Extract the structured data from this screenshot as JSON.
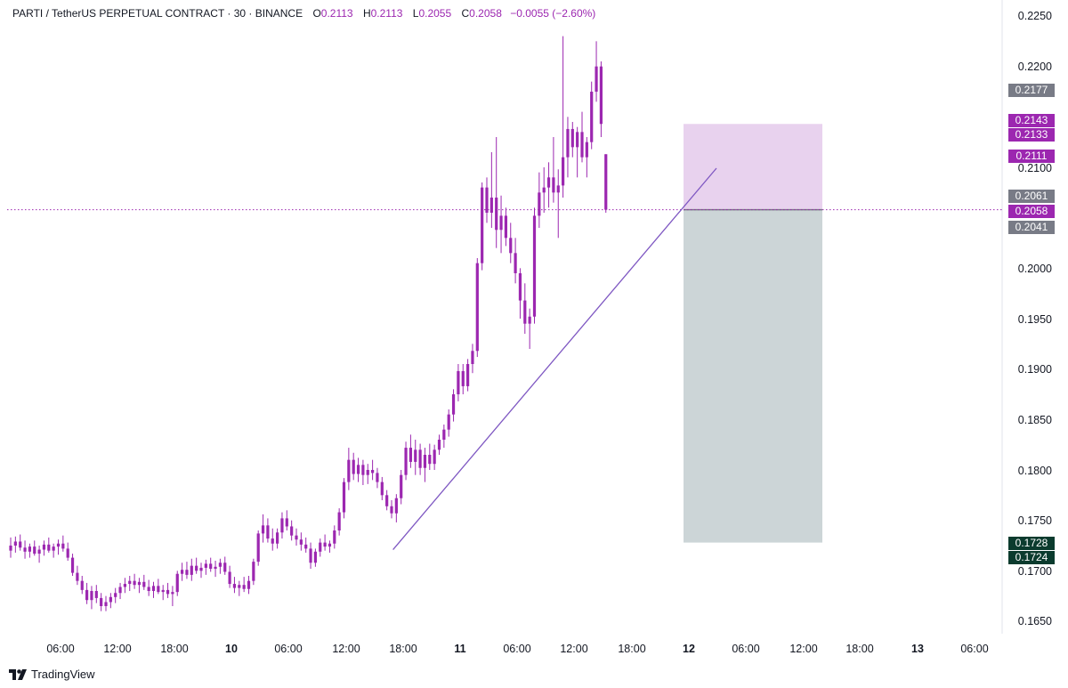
{
  "header": {
    "symbol": "PARTI / TetherUS PERPETUAL CONTRACT · 30 · BINANCE",
    "open_label": "O",
    "open": "0.2113",
    "high_label": "H",
    "high": "0.2113",
    "low_label": "L",
    "low": "0.2055",
    "close_label": "C",
    "close": "0.2058",
    "change": "−0.0055 (−2.60%)"
  },
  "brand": {
    "name": "TradingView",
    "icon": "tradingview-logo-icon"
  },
  "y_axis": {
    "ticks": [
      "0.2250",
      "0.2200",
      "0.2100",
      "0.2000",
      "0.1950",
      "0.1900",
      "0.1850",
      "0.1800",
      "0.1750",
      "0.1700",
      "0.1650"
    ]
  },
  "x_axis": {
    "ticks": [
      {
        "label": "06:00",
        "bold": false
      },
      {
        "label": "12:00",
        "bold": false
      },
      {
        "label": "18:00",
        "bold": false
      },
      {
        "label": "10",
        "bold": true
      },
      {
        "label": "06:00",
        "bold": false
      },
      {
        "label": "12:00",
        "bold": false
      },
      {
        "label": "18:00",
        "bold": false
      },
      {
        "label": "11",
        "bold": true
      },
      {
        "label": "06:00",
        "bold": false
      },
      {
        "label": "12:00",
        "bold": false
      },
      {
        "label": "18:00",
        "bold": false
      },
      {
        "label": "12",
        "bold": true
      },
      {
        "label": "06:00",
        "bold": false
      },
      {
        "label": "12:00",
        "bold": false
      },
      {
        "label": "18:00",
        "bold": false
      },
      {
        "label": "13",
        "bold": true
      },
      {
        "label": "06:00",
        "bold": false
      }
    ]
  },
  "price_labels": [
    {
      "value": "0.2177",
      "color": "#787b86"
    },
    {
      "value": "0.2143",
      "color": "#9c27b0"
    },
    {
      "value": "0.2133",
      "color": "#9c27b0"
    },
    {
      "value": "0.2111",
      "color": "#9c27b0"
    },
    {
      "value": "0.2061",
      "color": "#787b86"
    },
    {
      "value": "0.2058",
      "color": "#9c27b0"
    },
    {
      "value": "0.2041",
      "color": "#787b86"
    },
    {
      "value": "0.1728",
      "color": "#0b3b2e"
    },
    {
      "value": "0.1724",
      "color": "#0b3b2e"
    }
  ],
  "colors": {
    "candle": "#9c27b0",
    "trendline": "#7e57c2",
    "stop_zone": "#e8d2ee",
    "target_zone": "#ccd5d7",
    "current_price_line": "#9c27b0"
  },
  "position_tool": {
    "type": "short position",
    "entry": 0.2058,
    "stop": 0.2143,
    "target": 0.1728
  },
  "chart_data": {
    "type": "candlestick",
    "symbol": "PARTI / TetherUS PERPETUAL CONTRACT",
    "interval": "30",
    "exchange": "BINANCE",
    "ylim": [
      0.1625,
      0.2265
    ],
    "last_close": 0.2058,
    "ohlc": [
      [
        0.172,
        0.1733,
        0.1713,
        0.1725
      ],
      [
        0.1725,
        0.1734,
        0.1718,
        0.1729
      ],
      [
        0.1729,
        0.1736,
        0.172,
        0.1723
      ],
      [
        0.1723,
        0.173,
        0.1712,
        0.1719
      ],
      [
        0.1719,
        0.1727,
        0.1713,
        0.1724
      ],
      [
        0.1724,
        0.173,
        0.1715,
        0.1717
      ],
      [
        0.1717,
        0.1725,
        0.1708,
        0.1721
      ],
      [
        0.1721,
        0.173,
        0.1715,
        0.1726
      ],
      [
        0.1726,
        0.1733,
        0.1718,
        0.172
      ],
      [
        0.172,
        0.1727,
        0.1713,
        0.1724
      ],
      [
        0.1724,
        0.1731,
        0.1716,
        0.1727
      ],
      [
        0.1727,
        0.1735,
        0.1719,
        0.1722
      ],
      [
        0.1722,
        0.1728,
        0.171,
        0.1713
      ],
      [
        0.1713,
        0.1717,
        0.1695,
        0.1698
      ],
      [
        0.1698,
        0.1705,
        0.1686,
        0.169
      ],
      [
        0.169,
        0.1695,
        0.1677,
        0.1681
      ],
      [
        0.1681,
        0.1688,
        0.1667,
        0.1671
      ],
      [
        0.1671,
        0.1685,
        0.1662,
        0.168
      ],
      [
        0.168,
        0.1686,
        0.1668,
        0.1673
      ],
      [
        0.1673,
        0.1678,
        0.166,
        0.1665
      ],
      [
        0.1665,
        0.1675,
        0.166,
        0.1669
      ],
      [
        0.1669,
        0.1678,
        0.1663,
        0.1674
      ],
      [
        0.1674,
        0.1683,
        0.1668,
        0.1678
      ],
      [
        0.1678,
        0.1688,
        0.1672,
        0.1684
      ],
      [
        0.1684,
        0.1693,
        0.1678,
        0.1687
      ],
      [
        0.1687,
        0.1695,
        0.168,
        0.169
      ],
      [
        0.169,
        0.1697,
        0.1682,
        0.1686
      ],
      [
        0.1686,
        0.1693,
        0.1678,
        0.1689
      ],
      [
        0.1689,
        0.1696,
        0.1681,
        0.1684
      ],
      [
        0.1684,
        0.1691,
        0.1675,
        0.168
      ],
      [
        0.168,
        0.1689,
        0.1673,
        0.1685
      ],
      [
        0.1685,
        0.1692,
        0.1677,
        0.1679
      ],
      [
        0.1679,
        0.1686,
        0.1671,
        0.1681
      ],
      [
        0.1681,
        0.1688,
        0.1673,
        0.1677
      ],
      [
        0.1677,
        0.1685,
        0.1665,
        0.1679
      ],
      [
        0.1679,
        0.17,
        0.1675,
        0.1697
      ],
      [
        0.1697,
        0.1708,
        0.169,
        0.1701
      ],
      [
        0.1701,
        0.1709,
        0.1692,
        0.1696
      ],
      [
        0.1696,
        0.1712,
        0.169,
        0.1705
      ],
      [
        0.1705,
        0.1713,
        0.1697,
        0.17
      ],
      [
        0.17,
        0.1708,
        0.1693,
        0.1703
      ],
      [
        0.1703,
        0.1711,
        0.1696,
        0.1707
      ],
      [
        0.1707,
        0.1713,
        0.1699,
        0.1702
      ],
      [
        0.1702,
        0.171,
        0.1694,
        0.1704
      ],
      [
        0.1704,
        0.1712,
        0.1697,
        0.1708
      ],
      [
        0.1708,
        0.1714,
        0.1696,
        0.1699
      ],
      [
        0.1699,
        0.1705,
        0.1683,
        0.1687
      ],
      [
        0.1687,
        0.1694,
        0.1678,
        0.1683
      ],
      [
        0.1683,
        0.169,
        0.1675,
        0.1686
      ],
      [
        0.1686,
        0.1694,
        0.1679,
        0.1682
      ],
      [
        0.1682,
        0.1695,
        0.1677,
        0.169
      ],
      [
        0.169,
        0.1712,
        0.1686,
        0.1709
      ],
      [
        0.1709,
        0.174,
        0.1705,
        0.1737
      ],
      [
        0.1737,
        0.1756,
        0.1728,
        0.1745
      ],
      [
        0.1745,
        0.1752,
        0.1728,
        0.1732
      ],
      [
        0.1732,
        0.1742,
        0.172,
        0.1727
      ],
      [
        0.1727,
        0.1742,
        0.1722,
        0.1738
      ],
      [
        0.1738,
        0.1758,
        0.1732,
        0.1752
      ],
      [
        0.1752,
        0.176,
        0.174,
        0.1744
      ],
      [
        0.1744,
        0.175,
        0.173,
        0.1735
      ],
      [
        0.1735,
        0.1742,
        0.1725,
        0.1731
      ],
      [
        0.1731,
        0.1738,
        0.172,
        0.1726
      ],
      [
        0.1726,
        0.1733,
        0.1718,
        0.1722
      ],
      [
        0.1722,
        0.1728,
        0.1702,
        0.1708
      ],
      [
        0.1708,
        0.1722,
        0.1704,
        0.1719
      ],
      [
        0.1719,
        0.1732,
        0.1714,
        0.1728
      ],
      [
        0.1728,
        0.1736,
        0.172,
        0.1724
      ],
      [
        0.1724,
        0.173,
        0.1718,
        0.1727
      ],
      [
        0.1727,
        0.1745,
        0.1722,
        0.174
      ],
      [
        0.174,
        0.1762,
        0.1735,
        0.1758
      ],
      [
        0.1758,
        0.1792,
        0.1752,
        0.1788
      ],
      [
        0.1788,
        0.1822,
        0.178,
        0.181
      ],
      [
        0.181,
        0.1817,
        0.179,
        0.1796
      ],
      [
        0.1796,
        0.1812,
        0.1788,
        0.1805
      ],
      [
        0.1805,
        0.181,
        0.1785,
        0.1795
      ],
      [
        0.1795,
        0.1806,
        0.1786,
        0.18
      ],
      [
        0.18,
        0.181,
        0.179,
        0.1797
      ],
      [
        0.1797,
        0.1802,
        0.1782,
        0.1788
      ],
      [
        0.1788,
        0.1793,
        0.177,
        0.1775
      ],
      [
        0.1775,
        0.178,
        0.176,
        0.1764
      ],
      [
        0.1764,
        0.177,
        0.1752,
        0.1757
      ],
      [
        0.1757,
        0.1776,
        0.1748,
        0.1772
      ],
      [
        0.1772,
        0.18,
        0.1766,
        0.1795
      ],
      [
        0.1795,
        0.1828,
        0.179,
        0.1822
      ],
      [
        0.1822,
        0.1835,
        0.1802,
        0.1808
      ],
      [
        0.1808,
        0.183,
        0.1795,
        0.182
      ],
      [
        0.182,
        0.1826,
        0.1795,
        0.1802
      ],
      [
        0.1802,
        0.1822,
        0.1788,
        0.1815
      ],
      [
        0.1815,
        0.1826,
        0.18,
        0.1806
      ],
      [
        0.1806,
        0.1825,
        0.18,
        0.182
      ],
      [
        0.182,
        0.1835,
        0.1815,
        0.183
      ],
      [
        0.183,
        0.1845,
        0.1822,
        0.184
      ],
      [
        0.184,
        0.186,
        0.1833,
        0.1855
      ],
      [
        0.1855,
        0.188,
        0.1848,
        0.1875
      ],
      [
        0.1875,
        0.1905,
        0.1868,
        0.1898
      ],
      [
        0.1898,
        0.1905,
        0.1875,
        0.1883
      ],
      [
        0.1883,
        0.191,
        0.1878,
        0.1905
      ],
      [
        0.1905,
        0.1925,
        0.1896,
        0.1918
      ],
      [
        0.1918,
        0.201,
        0.1912,
        0.2005
      ],
      [
        0.2005,
        0.2085,
        0.1998,
        0.208
      ],
      [
        0.208,
        0.209,
        0.2045,
        0.2055
      ],
      [
        0.2055,
        0.2115,
        0.204,
        0.207
      ],
      [
        0.207,
        0.213,
        0.202,
        0.2038
      ],
      [
        0.2038,
        0.2072,
        0.2015,
        0.2052
      ],
      [
        0.2052,
        0.206,
        0.2022,
        0.203
      ],
      [
        0.203,
        0.2045,
        0.2005,
        0.2015
      ],
      [
        0.2015,
        0.203,
        0.1985,
        0.1995
      ],
      [
        0.1995,
        0.2,
        0.195,
        0.1968
      ],
      [
        0.1968,
        0.1985,
        0.1935,
        0.1945
      ],
      [
        0.1945,
        0.196,
        0.192,
        0.1952
      ],
      [
        0.1952,
        0.206,
        0.1945,
        0.2052
      ],
      [
        0.2052,
        0.2095,
        0.204,
        0.2075
      ],
      [
        0.2075,
        0.21,
        0.2055,
        0.208
      ],
      [
        0.208,
        0.2105,
        0.206,
        0.209
      ],
      [
        0.209,
        0.213,
        0.2065,
        0.2075
      ],
      [
        0.2075,
        0.2098,
        0.203,
        0.2082
      ],
      [
        0.2082,
        0.223,
        0.207,
        0.211
      ],
      [
        0.211,
        0.215,
        0.209,
        0.2138
      ],
      [
        0.2138,
        0.2145,
        0.211,
        0.212
      ],
      [
        0.212,
        0.214,
        0.209,
        0.2135
      ],
      [
        0.2135,
        0.2155,
        0.2105,
        0.211
      ],
      [
        0.211,
        0.213,
        0.209,
        0.2125
      ],
      [
        0.2125,
        0.2185,
        0.2118,
        0.2175
      ],
      [
        0.2175,
        0.2225,
        0.2165,
        0.22
      ],
      [
        0.22,
        0.2205,
        0.213,
        0.2143
      ],
      [
        0.2113,
        0.2113,
        0.2055,
        0.2058
      ]
    ],
    "drawings": {
      "trendline": {
        "from_index": 76,
        "from_price": 0.1736,
        "to_index": 124,
        "to_price": 0.2098
      }
    }
  }
}
